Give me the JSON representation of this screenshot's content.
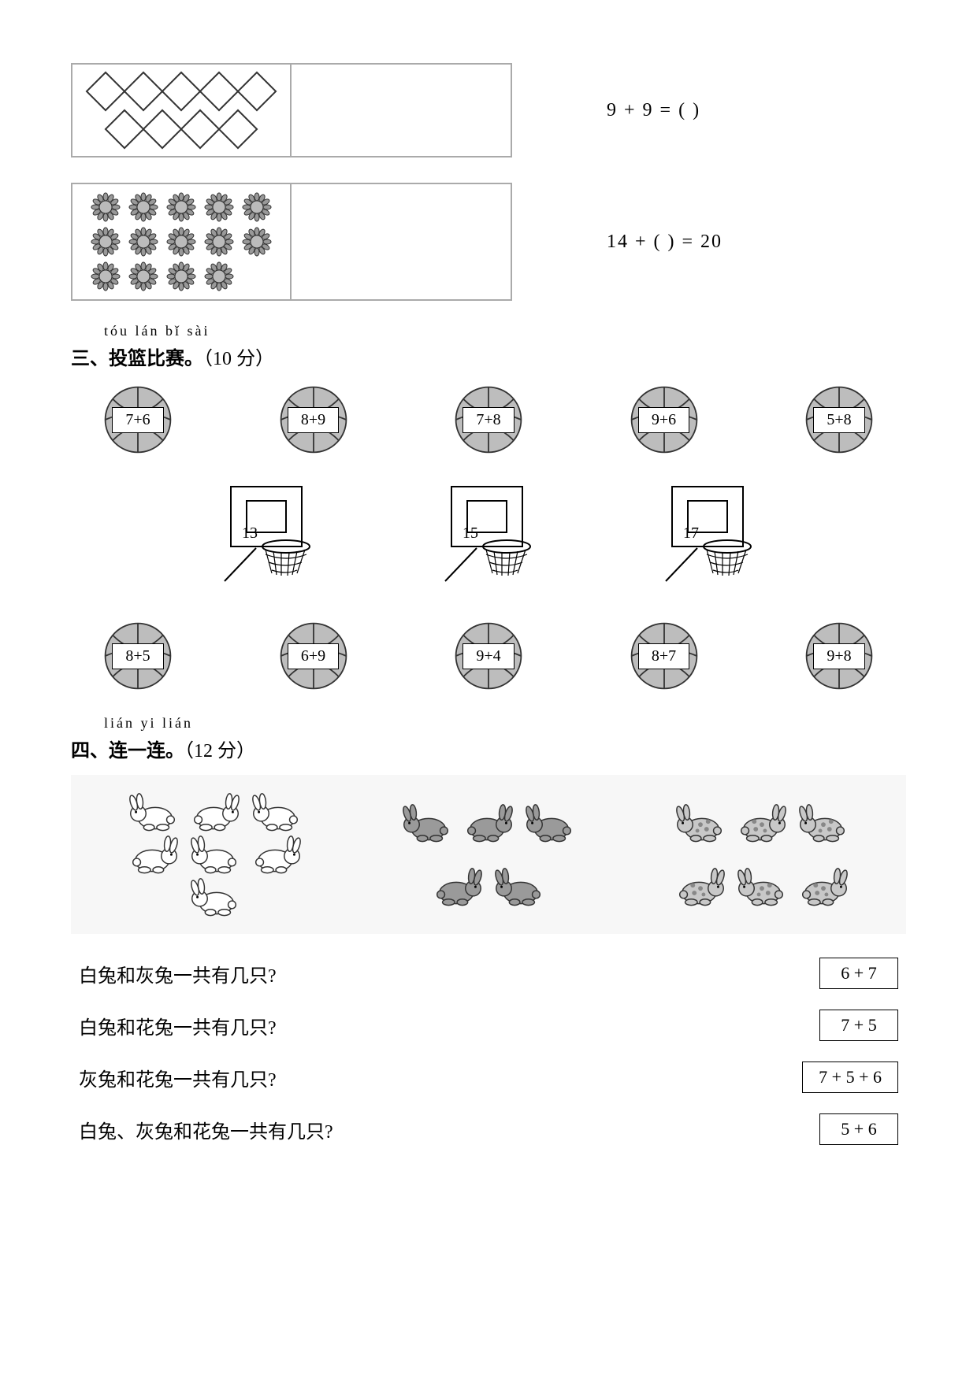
{
  "problem1": {
    "diamond_rows": [
      5,
      4
    ],
    "equation": "9 + 9 = (         )"
  },
  "problem2": {
    "flower_rows": [
      5,
      5,
      4
    ],
    "equation": "14 + (        ) = 20"
  },
  "section3": {
    "pinyin": "tóu lán bǐ sài",
    "title": "三、投篮比赛。",
    "points": "（10 分）",
    "balls_top": [
      "7+6",
      "8+9",
      "7+8",
      "9+6",
      "5+8"
    ],
    "hoops": [
      "13",
      "15",
      "17"
    ],
    "balls_bottom": [
      "8+5",
      "6+9",
      "9+4",
      "8+7",
      "9+8"
    ]
  },
  "section4": {
    "pinyin": "lián yi lián",
    "title": "四、连一连。",
    "points": "（12 分）",
    "groups": [
      {
        "count": 7,
        "fill": "#ffffff",
        "spots": false
      },
      {
        "count": 5,
        "fill": "#9a9a9a",
        "spots": false
      },
      {
        "count": 6,
        "fill": "#c8c8c8",
        "spots": true
      }
    ],
    "questions": [
      {
        "text": "白兔和灰兔一共有几只?",
        "box": "6 + 7"
      },
      {
        "text": "白兔和花兔一共有几只?",
        "box": "7 + 5"
      },
      {
        "text": "灰兔和花兔一共有几只?",
        "box": "7 + 5 + 6"
      },
      {
        "text": "白兔、灰兔和花兔一共有几只?",
        "box": "5 + 6"
      }
    ]
  },
  "colors": {
    "page_bg": "#ffffff",
    "border": "#000000",
    "light_border": "#aaaaaa",
    "ball_fill": "#bdbdbd",
    "rabbit_area_bg": "#f7f7f7"
  }
}
